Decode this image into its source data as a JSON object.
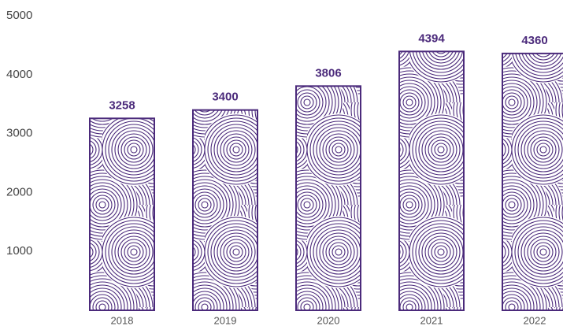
{
  "chart_data": {
    "type": "bar",
    "categories": [
      "2018",
      "2019",
      "2020",
      "2021",
      "2022"
    ],
    "values": [
      3258,
      3400,
      3806,
      4394,
      4360
    ],
    "color": "#4b2a7b",
    "ylim": [
      0,
      5000
    ],
    "yticks": [
      1000,
      2000,
      3000,
      4000,
      5000
    ],
    "grid": false
  }
}
